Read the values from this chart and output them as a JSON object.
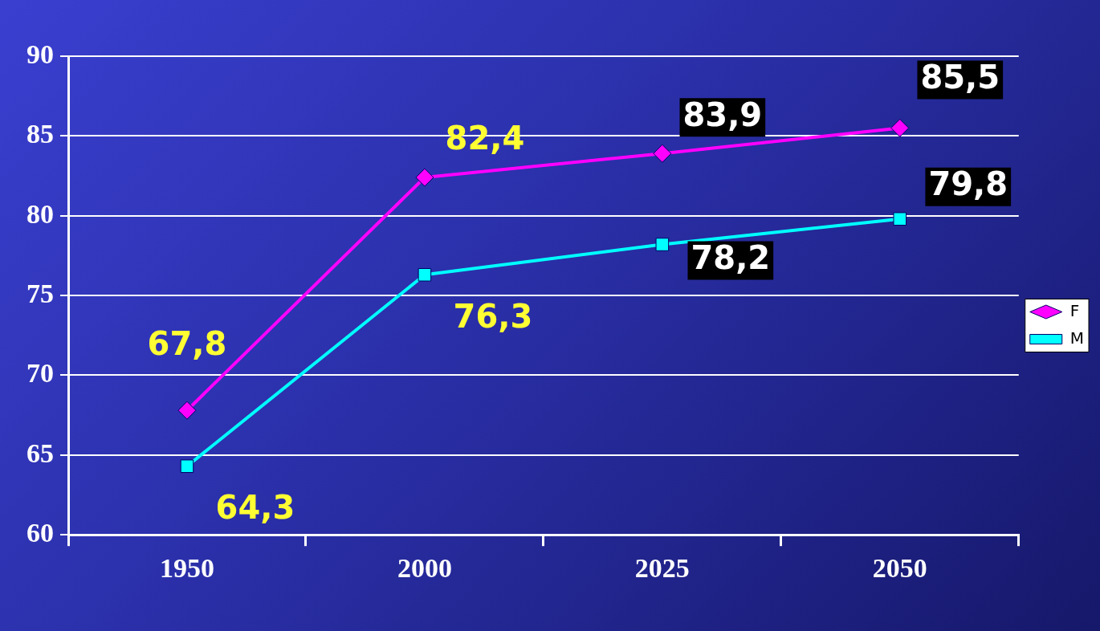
{
  "chart_data": {
    "type": "line",
    "categories": [
      "1950",
      "2000",
      "2025",
      "2050"
    ],
    "series": [
      {
        "name": "F",
        "color": "#ff00ff",
        "marker": "diamond",
        "values": [
          67.8,
          82.4,
          83.9,
          85.5
        ],
        "value_labels": [
          "67,8",
          "82,4",
          "83,9",
          "85,5"
        ]
      },
      {
        "name": "M",
        "color": "#00ffff",
        "marker": "square",
        "values": [
          64.3,
          76.3,
          78.2,
          79.8
        ],
        "value_labels": [
          "64,3",
          "76,3",
          "78,2",
          "79,8"
        ]
      }
    ],
    "ylim": [
      60,
      90
    ],
    "yticks": [
      60,
      65,
      70,
      75,
      80,
      85,
      90
    ],
    "grid": "y",
    "legend": "right",
    "line_style": "solid"
  }
}
